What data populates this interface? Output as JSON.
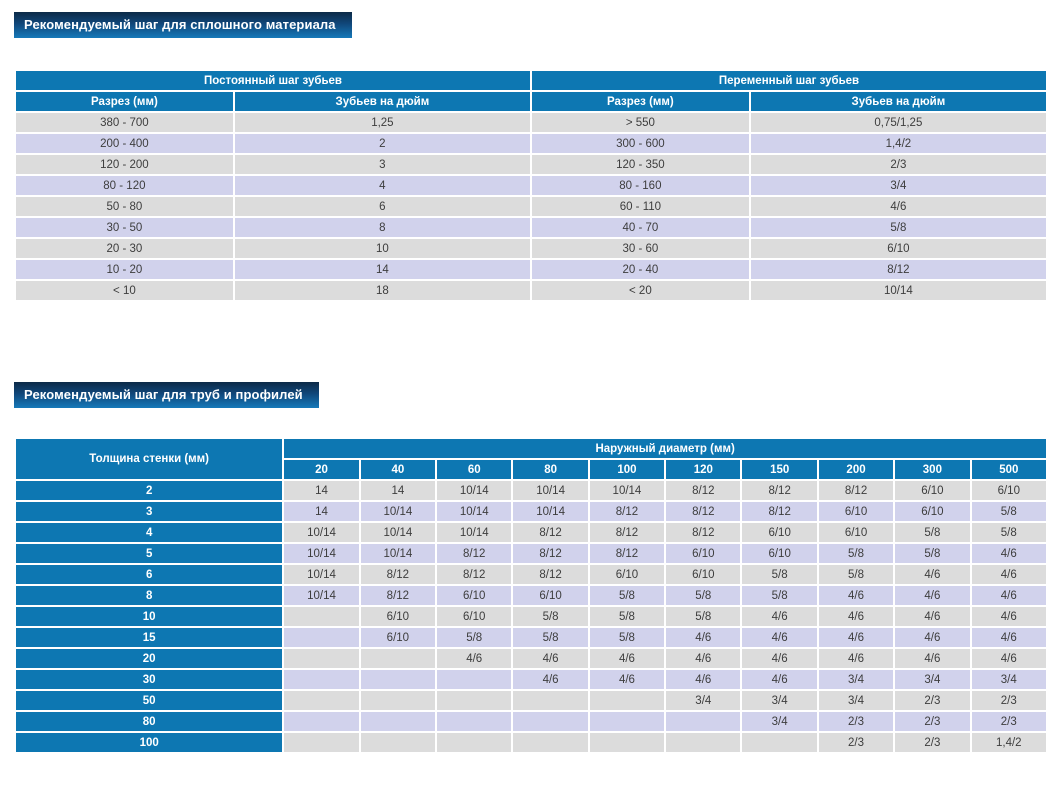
{
  "banners": {
    "solid": "Рекомендуемый шаг для сплошного материала",
    "pipes": "Рекомендуемый шаг для труб и профилей"
  },
  "solid_table": {
    "group_headers": [
      "Постоянный шаг зубьев",
      "Переменный шаг зубьев"
    ],
    "col_headers": [
      "Разрез (мм)",
      "Зубьев на дюйм",
      "Разрез (мм)",
      "Зубьев на дюйм"
    ],
    "rows": [
      [
        "380 - 700",
        "1,25",
        "> 550",
        "0,75/1,25"
      ],
      [
        "200 - 400",
        "2",
        "300 - 600",
        "1,4/2"
      ],
      [
        "120 - 200",
        "3",
        "120 - 350",
        "2/3"
      ],
      [
        "80 - 120",
        "4",
        "80 - 160",
        "3/4"
      ],
      [
        "50 - 80",
        "6",
        "60 - 110",
        "4/6"
      ],
      [
        "30 - 50",
        "8",
        "40 - 70",
        "5/8"
      ],
      [
        "20 - 30",
        "10",
        "30 - 60",
        "6/10"
      ],
      [
        "10 - 20",
        "14",
        "20 - 40",
        "8/12"
      ],
      [
        "< 10",
        "18",
        "< 20",
        "10/14"
      ]
    ]
  },
  "pipe_table": {
    "row_header": "Толщина стенки (мм)",
    "group_header": "Наружный диаметр (мм)",
    "diameters": [
      "20",
      "40",
      "60",
      "80",
      "100",
      "120",
      "150",
      "200",
      "300",
      "500"
    ],
    "rows": [
      {
        "thickness": "2",
        "values": [
          "14",
          "14",
          "10/14",
          "10/14",
          "10/14",
          "8/12",
          "8/12",
          "8/12",
          "6/10",
          "6/10"
        ]
      },
      {
        "thickness": "3",
        "values": [
          "14",
          "10/14",
          "10/14",
          "10/14",
          "8/12",
          "8/12",
          "8/12",
          "6/10",
          "6/10",
          "5/8"
        ]
      },
      {
        "thickness": "4",
        "values": [
          "10/14",
          "10/14",
          "10/14",
          "8/12",
          "8/12",
          "8/12",
          "6/10",
          "6/10",
          "5/8",
          "5/8"
        ]
      },
      {
        "thickness": "5",
        "values": [
          "10/14",
          "10/14",
          "8/12",
          "8/12",
          "8/12",
          "6/10",
          "6/10",
          "5/8",
          "5/8",
          "4/6"
        ]
      },
      {
        "thickness": "6",
        "values": [
          "10/14",
          "8/12",
          "8/12",
          "8/12",
          "6/10",
          "6/10",
          "5/8",
          "5/8",
          "4/6",
          "4/6"
        ]
      },
      {
        "thickness": "8",
        "values": [
          "10/14",
          "8/12",
          "6/10",
          "6/10",
          "5/8",
          "5/8",
          "5/8",
          "4/6",
          "4/6",
          "4/6"
        ]
      },
      {
        "thickness": "10",
        "values": [
          "",
          "6/10",
          "6/10",
          "5/8",
          "5/8",
          "5/8",
          "4/6",
          "4/6",
          "4/6",
          "4/6"
        ]
      },
      {
        "thickness": "15",
        "values": [
          "",
          "6/10",
          "5/8",
          "5/8",
          "5/8",
          "4/6",
          "4/6",
          "4/6",
          "4/6",
          "4/6"
        ]
      },
      {
        "thickness": "20",
        "values": [
          "",
          "",
          "4/6",
          "4/6",
          "4/6",
          "4/6",
          "4/6",
          "4/6",
          "4/6",
          "4/6"
        ]
      },
      {
        "thickness": "30",
        "values": [
          "",
          "",
          "",
          "4/6",
          "4/6",
          "4/6",
          "4/6",
          "3/4",
          "3/4",
          "3/4"
        ]
      },
      {
        "thickness": "50",
        "values": [
          "",
          "",
          "",
          "",
          "",
          "3/4",
          "3/4",
          "3/4",
          "2/3",
          "2/3"
        ]
      },
      {
        "thickness": "80",
        "values": [
          "",
          "",
          "",
          "",
          "",
          "",
          "3/4",
          "2/3",
          "2/3",
          "2/3"
        ]
      },
      {
        "thickness": "100",
        "values": [
          "",
          "",
          "",
          "",
          "",
          "",
          "",
          "2/3",
          "2/3",
          "1,4/2"
        ]
      }
    ]
  },
  "colors": {
    "header-blue": "#0d77b2",
    "banner-top": "#0c2a47",
    "banner-mid": "#10477a",
    "banner-bottom": "#1679b9",
    "row-gray": "#dcdcdc",
    "row-lavender": "#d1d2ec",
    "cell-text": "#3d3d3d"
  }
}
